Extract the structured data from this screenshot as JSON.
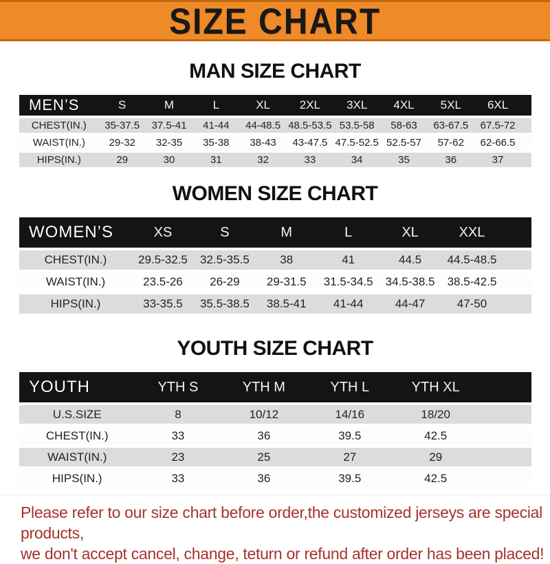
{
  "banner": {
    "title": "SIZE CHART",
    "bg_color": "#ee8b28",
    "border_color": "#c2690f",
    "text_color": "#181818"
  },
  "sections": [
    {
      "title": "MAN SIZE CHART",
      "header": [
        "MEN’S",
        "S",
        "M",
        "L",
        "XL",
        "2XL",
        "3XL",
        "4XL",
        "5XL",
        "6XL"
      ],
      "rows": [
        [
          "CHEST(IN.)",
          "35-37.5",
          "37.5-41",
          "41-44",
          "44-48.5",
          "48.5-53.5",
          "53.5-58",
          "58-63",
          "63-67.5",
          "67.5-72"
        ],
        [
          "WAIST(IN.)",
          "29-32",
          "32-35",
          "35-38",
          "38-43",
          "43-47.5",
          "47.5-52.5",
          "52.5-57",
          "57-62",
          "62-66.5"
        ],
        [
          "HIPS(IN.)",
          "29",
          "30",
          "31",
          "32",
          "33",
          "34",
          "35",
          "36",
          "37"
        ]
      ]
    },
    {
      "title": "WOMEN SIZE CHART",
      "header": [
        "WOMEN’S",
        "XS",
        "S",
        "M",
        "L",
        "XL",
        "XXL"
      ],
      "rows": [
        [
          "CHEST(IN.)",
          "29.5-32.5",
          "32.5-35.5",
          "38",
          "41",
          "44.5",
          "44.5-48.5"
        ],
        [
          "WAIST(IN.)",
          "23.5-26",
          "26-29",
          "29-31.5",
          "31.5-34.5",
          "34.5-38.5",
          "38.5-42.5"
        ],
        [
          "HIPS(IN.)",
          "33-35.5",
          "35.5-38.5",
          "38.5-41",
          "41-44",
          "44-47",
          "47-50"
        ]
      ]
    },
    {
      "title": "YOUTH SIZE CHART",
      "header": [
        "YOUTH",
        "YTH S",
        "YTH M",
        "YTH L",
        "YTH XL"
      ],
      "rows": [
        [
          "U.S.SIZE",
          "8",
          "10/12",
          "14/16",
          "18/20"
        ],
        [
          "CHEST(IN.)",
          "33",
          "36",
          "39.5",
          "42.5"
        ],
        [
          "WAIST(IN.)",
          "23",
          "25",
          "27",
          "29"
        ],
        [
          "HIPS(IN.)",
          "33",
          "36",
          "39.5",
          "42.5"
        ]
      ]
    }
  ],
  "table_colors": {
    "header_bg": "#141414",
    "header_text": "#ffffff",
    "stripe_gray": "#dcdcdc",
    "stripe_white": "#fdfdfd"
  },
  "note": {
    "line1": "Please refer to our size chart before order,the customized jerseys are special products,",
    "line2": "we don't accept cancel, change, teturn or refund after order has been placed!",
    "text_color": "#a6322c"
  }
}
